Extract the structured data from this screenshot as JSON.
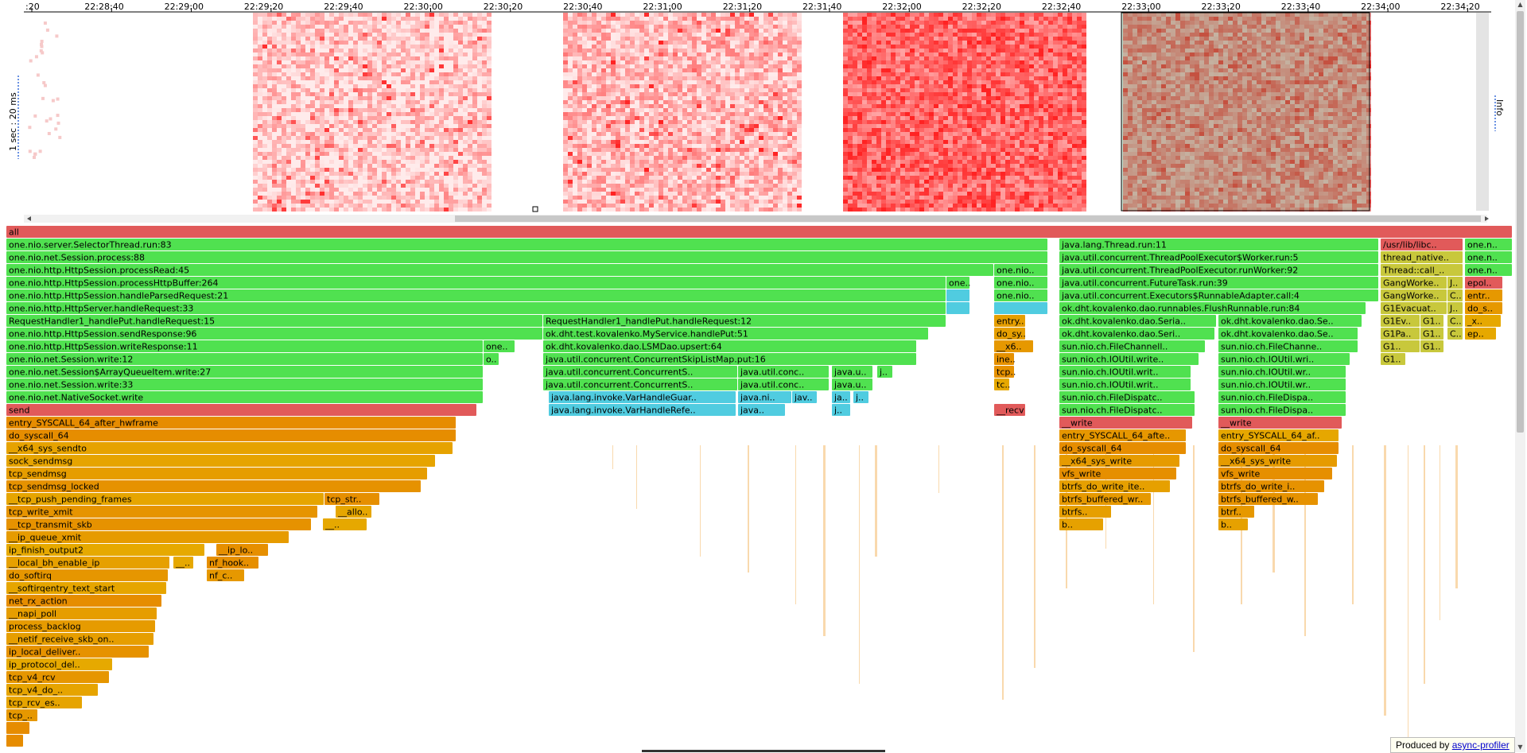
{
  "heatmap": {
    "time_ticks": [
      ":20",
      "22:28:40",
      "22:29:00",
      "22:29:20",
      "22:29:40",
      "22:30:00",
      "22:30:20",
      "22:30:40",
      "22:31:00",
      "22:31:20",
      "22:31:40",
      "22:32:00",
      "22:32:20",
      "22:32:40",
      "22:33:00",
      "22:33:20",
      "22:33:40",
      "22:34:00",
      "22:34:20"
    ],
    "scale_label": "1 sec : 20 ms",
    "info_label": "Info",
    "scroll_left_icon": "triangle-left",
    "scroll_right_icon": "triangle-right",
    "colors": {
      "heat_light": "#fde0e0",
      "heat_medium": "#f26b6b",
      "heat_dark": "#d62020",
      "selection_fill": "#5aa878",
      "selection_border": "#000000",
      "background": "#ffffff",
      "scrollbar": "#c8c8c8"
    }
  },
  "flamegraph": {
    "colors": {
      "java": "#50e150",
      "java_interp": "#5ee85e",
      "inlined": "#50cce0",
      "kernel": "#e69900",
      "kernel_light": "#f5a623",
      "native": "#e15a5a",
      "cpp": "#c8c83c",
      "root": "#e15a5a"
    },
    "frames": [
      {
        "d": 0,
        "a": 0,
        "b": 1894,
        "t": "all",
        "c": "root"
      },
      {
        "d": 1,
        "a": 0,
        "b": 1310,
        "t": "one.nio.server.SelectorThread.run:83",
        "c": "java"
      },
      {
        "d": 1,
        "a": 1324,
        "b": 1726,
        "t": "java.lang.Thread.run:11",
        "c": "java"
      },
      {
        "d": 1,
        "a": 1728,
        "b": 1832,
        "t": "/usr/lib/libc..",
        "c": "native"
      },
      {
        "d": 1,
        "a": 1834,
        "b": 1894,
        "t": "one.n..",
        "c": "java"
      },
      {
        "d": 2,
        "a": 0,
        "b": 1310,
        "t": "one.nio.net.Session.process:88",
        "c": "java"
      },
      {
        "d": 2,
        "a": 1324,
        "b": 1726,
        "t": "java.util.concurrent.ThreadPoolExecutor$Worker.run:5",
        "c": "java"
      },
      {
        "d": 2,
        "a": 1728,
        "b": 1832,
        "t": "thread_native..",
        "c": "cpp"
      },
      {
        "d": 2,
        "a": 1834,
        "b": 1894,
        "t": "one.n..",
        "c": "java"
      },
      {
        "d": 3,
        "a": 0,
        "b": 1242,
        "t": "one.nio.http.HttpSession.processRead:45",
        "c": "java"
      },
      {
        "d": 3,
        "a": 1242,
        "b": 1310,
        "t": "one.nio..",
        "c": "java"
      },
      {
        "d": 3,
        "a": 1324,
        "b": 1726,
        "t": "java.util.concurrent.ThreadPoolExecutor.runWorker:92",
        "c": "java"
      },
      {
        "d": 3,
        "a": 1728,
        "b": 1832,
        "t": "Thread::call_..",
        "c": "cpp"
      },
      {
        "d": 3,
        "a": 1834,
        "b": 1894,
        "t": "one.n..",
        "c": "java"
      },
      {
        "d": 4,
        "a": 0,
        "b": 1182,
        "t": "one.nio.http.HttpSession.processHttpBuffer:264",
        "c": "java"
      },
      {
        "d": 4,
        "a": 1182,
        "b": 1212,
        "t": "one..",
        "c": "java"
      },
      {
        "d": 4,
        "a": 1242,
        "b": 1310,
        "t": "one.nio..",
        "c": "java"
      },
      {
        "d": 4,
        "a": 1324,
        "b": 1726,
        "t": "java.util.concurrent.FutureTask.run:39",
        "c": "java"
      },
      {
        "d": 4,
        "a": 1728,
        "b": 1812,
        "t": "GangWorke..",
        "c": "cpp"
      },
      {
        "d": 4,
        "a": 1812,
        "b": 1832,
        "t": "J..",
        "c": "cpp"
      },
      {
        "d": 4,
        "a": 1834,
        "b": 1882,
        "t": "epol..",
        "c": "native"
      },
      {
        "d": 5,
        "a": 0,
        "b": 1182,
        "t": "one.nio.http.HttpSession.handleParsedRequest:21",
        "c": "java"
      },
      {
        "d": 5,
        "a": 1182,
        "b": 1212,
        "t": "",
        "c": "inlined"
      },
      {
        "d": 5,
        "a": 1242,
        "b": 1310,
        "t": "one.nio..",
        "c": "java"
      },
      {
        "d": 5,
        "a": 1324,
        "b": 1726,
        "t": "java.util.concurrent.Executors$RunnableAdapter.call:4",
        "c": "java"
      },
      {
        "d": 5,
        "a": 1728,
        "b": 1812,
        "t": "GangWorke..",
        "c": "cpp"
      },
      {
        "d": 5,
        "a": 1812,
        "b": 1832,
        "t": "C..",
        "c": "cpp"
      },
      {
        "d": 5,
        "a": 1834,
        "b": 1882,
        "t": "entr..",
        "c": "kernel"
      },
      {
        "d": 6,
        "a": 0,
        "b": 1182,
        "t": "one.nio.http.HttpServer.handleRequest:33",
        "c": "java"
      },
      {
        "d": 6,
        "a": 1182,
        "b": 1212,
        "t": "",
        "c": "inlined"
      },
      {
        "d": 6,
        "a": 1242,
        "b": 1310,
        "t": "",
        "c": "inlined"
      },
      {
        "d": 6,
        "a": 1324,
        "b": 1710,
        "t": "ok.dht.kovalenko.dao.runnables.FlushRunnable.run:84",
        "c": "java"
      },
      {
        "d": 6,
        "a": 1728,
        "b": 1812,
        "t": "G1Evacuat..",
        "c": "cpp"
      },
      {
        "d": 6,
        "a": 1812,
        "b": 1832,
        "t": "J..",
        "c": "cpp"
      },
      {
        "d": 6,
        "a": 1834,
        "b": 1882,
        "t": "do_s..",
        "c": "kernel"
      },
      {
        "d": 7,
        "a": 0,
        "b": 675,
        "t": "RequestHandler1_handlePut.handleRequest:15",
        "c": "java"
      },
      {
        "d": 7,
        "a": 675,
        "b": 1182,
        "t": "RequestHandler1_handlePut.handleRequest:12",
        "c": "java"
      },
      {
        "d": 7,
        "a": 1242,
        "b": 1282,
        "t": "entry..",
        "c": "kernel"
      },
      {
        "d": 7,
        "a": 1324,
        "b": 1522,
        "t": "ok.dht.kovalenko.dao.Seria..",
        "c": "java"
      },
      {
        "d": 7,
        "a": 1524,
        "b": 1705,
        "t": "ok.dht.kovalenko.dao.Se..",
        "c": "java"
      },
      {
        "d": 7,
        "a": 1728,
        "b": 1778,
        "t": "G1Ev..",
        "c": "cpp"
      },
      {
        "d": 7,
        "a": 1778,
        "b": 1808,
        "t": "G1..",
        "c": "cpp"
      },
      {
        "d": 7,
        "a": 1812,
        "b": 1832,
        "t": "C..",
        "c": "cpp"
      },
      {
        "d": 7,
        "a": 1834,
        "b": 1880,
        "t": "_x..",
        "c": "kernel"
      },
      {
        "d": 8,
        "a": 0,
        "b": 675,
        "t": "one.nio.http.HttpSession.sendResponse:96",
        "c": "java"
      },
      {
        "d": 8,
        "a": 675,
        "b": 1160,
        "t": "ok.dht.test.kovalenko.MyService.handlePut:51",
        "c": "java"
      },
      {
        "d": 8,
        "a": 1242,
        "b": 1282,
        "t": "do_sy..",
        "c": "kernel"
      },
      {
        "d": 8,
        "a": 1324,
        "b": 1520,
        "t": "ok.dht.kovalenko.dao.Seri..",
        "c": "java"
      },
      {
        "d": 8,
        "a": 1524,
        "b": 1700,
        "t": "ok.dht.kovalenko.dao.Se..",
        "c": "java"
      },
      {
        "d": 8,
        "a": 1728,
        "b": 1778,
        "t": "G1Pa..",
        "c": "cpp"
      },
      {
        "d": 8,
        "a": 1778,
        "b": 1808,
        "t": "G1..",
        "c": "cpp"
      },
      {
        "d": 8,
        "a": 1812,
        "b": 1832,
        "t": "C..",
        "c": "cpp"
      },
      {
        "d": 8,
        "a": 1834,
        "b": 1874,
        "t": "ep..",
        "c": "kernel"
      },
      {
        "d": 9,
        "a": 0,
        "b": 600,
        "t": "one.nio.http.HttpSession.writeResponse:11",
        "c": "java"
      },
      {
        "d": 9,
        "a": 600,
        "b": 640,
        "t": "one..",
        "c": "java"
      },
      {
        "d": 9,
        "a": 675,
        "b": 1145,
        "t": "ok.dht.kovalenko.dao.LSMDao.upsert:64",
        "c": "java"
      },
      {
        "d": 9,
        "a": 1242,
        "b": 1292,
        "t": "__x6..",
        "c": "kernel"
      },
      {
        "d": 9,
        "a": 1324,
        "b": 1508,
        "t": "sun.nio.ch.FileChannell..",
        "c": "java"
      },
      {
        "d": 9,
        "a": 1524,
        "b": 1700,
        "t": "sun.nio.ch.FileChanne..",
        "c": "java"
      },
      {
        "d": 9,
        "a": 1728,
        "b": 1778,
        "t": "G1..",
        "c": "cpp"
      },
      {
        "d": 9,
        "a": 1778,
        "b": 1808,
        "t": "G1..",
        "c": "cpp"
      },
      {
        "d": 10,
        "a": 0,
        "b": 600,
        "t": "one.nio.net.Session.write:12",
        "c": "java"
      },
      {
        "d": 10,
        "a": 600,
        "b": 620,
        "t": "o..",
        "c": "java"
      },
      {
        "d": 10,
        "a": 675,
        "b": 1145,
        "t": "java.util.concurrent.ConcurrentSkipListMap.put:16",
        "c": "java"
      },
      {
        "d": 10,
        "a": 1242,
        "b": 1268,
        "t": "ine..",
        "c": "kernel"
      },
      {
        "d": 10,
        "a": 1324,
        "b": 1500,
        "t": "sun.nio.ch.IOUtil.write..",
        "c": "java"
      },
      {
        "d": 10,
        "a": 1524,
        "b": 1690,
        "t": "sun.nio.ch.IOUtil.wri..",
        "c": "java"
      },
      {
        "d": 10,
        "a": 1728,
        "b": 1760,
        "t": "G1..",
        "c": "cpp"
      },
      {
        "d": 11,
        "a": 0,
        "b": 600,
        "t": "one.nio.net.Session$ArrayQueueItem.write:27",
        "c": "java"
      },
      {
        "d": 11,
        "a": 675,
        "b": 920,
        "t": "java.util.concurrent.ConcurrentS..",
        "c": "java"
      },
      {
        "d": 11,
        "a": 920,
        "b": 1035,
        "t": "java.util.conc..",
        "c": "java"
      },
      {
        "d": 11,
        "a": 1038,
        "b": 1090,
        "t": "java.u..",
        "c": "java"
      },
      {
        "d": 11,
        "a": 1095,
        "b": 1115,
        "t": "j..",
        "c": "java"
      },
      {
        "d": 11,
        "a": 1242,
        "b": 1268,
        "t": "tcp..",
        "c": "kernel"
      },
      {
        "d": 11,
        "a": 1324,
        "b": 1490,
        "t": "sun.nio.ch.IOUtil.writ..",
        "c": "java"
      },
      {
        "d": 11,
        "a": 1524,
        "b": 1685,
        "t": "sun.nio.ch.IOUtil.wr..",
        "c": "java"
      },
      {
        "d": 12,
        "a": 0,
        "b": 600,
        "t": "one.nio.net.Session.write:33",
        "c": "java"
      },
      {
        "d": 12,
        "a": 675,
        "b": 920,
        "t": "java.util.concurrent.ConcurrentS..",
        "c": "java"
      },
      {
        "d": 12,
        "a": 920,
        "b": 1035,
        "t": "java.util.conc..",
        "c": "java"
      },
      {
        "d": 12,
        "a": 1038,
        "b": 1090,
        "t": "java.u..",
        "c": "java"
      },
      {
        "d": 12,
        "a": 1242,
        "b": 1262,
        "t": "tc..",
        "c": "kernel"
      },
      {
        "d": 12,
        "a": 1324,
        "b": 1490,
        "t": "sun.nio.ch.IOUtil.writ..",
        "c": "java"
      },
      {
        "d": 12,
        "a": 1524,
        "b": 1685,
        "t": "sun.nio.ch.IOUtil.wr..",
        "c": "java"
      },
      {
        "d": 13,
        "a": 0,
        "b": 600,
        "t": "one.nio.net.NativeSocket.write",
        "c": "java"
      },
      {
        "d": 13,
        "a": 682,
        "b": 918,
        "t": "java.lang.invoke.VarHandleGuar..",
        "c": "inlined"
      },
      {
        "d": 13,
        "a": 920,
        "b": 988,
        "t": "java.ni..",
        "c": "inlined"
      },
      {
        "d": 13,
        "a": 988,
        "b": 1020,
        "t": "jav..",
        "c": "inlined"
      },
      {
        "d": 13,
        "a": 1038,
        "b": 1062,
        "t": "ja..",
        "c": "inlined"
      },
      {
        "d": 13,
        "a": 1065,
        "b": 1085,
        "t": "j..",
        "c": "inlined"
      },
      {
        "d": 13,
        "a": 1324,
        "b": 1495,
        "t": "sun.nio.ch.FileDispatc..",
        "c": "java"
      },
      {
        "d": 13,
        "a": 1524,
        "b": 1685,
        "t": "sun.nio.ch.FileDispa..",
        "c": "java"
      },
      {
        "d": 14,
        "a": 0,
        "b": 592,
        "t": "send",
        "c": "native"
      },
      {
        "d": 14,
        "a": 682,
        "b": 918,
        "t": "java.lang.invoke.VarHandleRefe..",
        "c": "inlined"
      },
      {
        "d": 14,
        "a": 920,
        "b": 980,
        "t": "java..",
        "c": "inlined"
      },
      {
        "d": 14,
        "a": 1038,
        "b": 1062,
        "t": "j..",
        "c": "inlined"
      },
      {
        "d": 14,
        "a": 1242,
        "b": 1282,
        "t": "__recv",
        "c": "native"
      },
      {
        "d": 14,
        "a": 1324,
        "b": 1495,
        "t": "sun.nio.ch.FileDispatc..",
        "c": "java"
      },
      {
        "d": 14,
        "a": 1524,
        "b": 1685,
        "t": "sun.nio.ch.FileDispa..",
        "c": "java"
      },
      {
        "d": 15,
        "a": 0,
        "b": 566,
        "t": "entry_SYSCALL_64_after_hwframe",
        "c": "kernel"
      },
      {
        "d": 15,
        "a": 1324,
        "b": 1492,
        "t": "__write",
        "c": "native"
      },
      {
        "d": 15,
        "a": 1524,
        "b": 1680,
        "t": "__write",
        "c": "native"
      },
      {
        "d": 16,
        "a": 0,
        "b": 566,
        "t": "do_syscall_64",
        "c": "kernel"
      },
      {
        "d": 16,
        "a": 1324,
        "b": 1484,
        "t": "entry_SYSCALL_64_afte..",
        "c": "kernel"
      },
      {
        "d": 16,
        "a": 1524,
        "b": 1676,
        "t": "entry_SYSCALL_64_af..",
        "c": "kernel"
      },
      {
        "d": 17,
        "a": 0,
        "b": 562,
        "t": "__x64_sys_sendto",
        "c": "kernel"
      },
      {
        "d": 17,
        "a": 1324,
        "b": 1484,
        "t": "do_syscall_64",
        "c": "kernel"
      },
      {
        "d": 17,
        "a": 1524,
        "b": 1676,
        "t": "do_syscall_64",
        "c": "kernel"
      },
      {
        "d": 18,
        "a": 0,
        "b": 540,
        "t": "sock_sendmsg",
        "c": "kernel"
      },
      {
        "d": 18,
        "a": 1324,
        "b": 1476,
        "t": "__x64_sys_write",
        "c": "kernel"
      },
      {
        "d": 18,
        "a": 1524,
        "b": 1674,
        "t": "__x64_sys_write",
        "c": "kernel"
      },
      {
        "d": 19,
        "a": 0,
        "b": 530,
        "t": "tcp_sendmsg",
        "c": "kernel"
      },
      {
        "d": 19,
        "a": 1324,
        "b": 1472,
        "t": "vfs_write",
        "c": "kernel"
      },
      {
        "d": 19,
        "a": 1524,
        "b": 1668,
        "t": "vfs_write",
        "c": "kernel"
      },
      {
        "d": 20,
        "a": 0,
        "b": 522,
        "t": "tcp_sendmsg_locked",
        "c": "kernel"
      },
      {
        "d": 20,
        "a": 1324,
        "b": 1464,
        "t": "btrfs_do_write_ite..",
        "c": "kernel"
      },
      {
        "d": 20,
        "a": 1524,
        "b": 1658,
        "t": "btrfs_do_write_i..",
        "c": "kernel"
      },
      {
        "d": 21,
        "a": 0,
        "b": 400,
        "t": "__tcp_push_pending_frames",
        "c": "kernel"
      },
      {
        "d": 21,
        "a": 400,
        "b": 470,
        "t": "tcp_str..",
        "c": "kernel"
      },
      {
        "d": 21,
        "a": 1324,
        "b": 1440,
        "t": "btrfs_buffered_wr..",
        "c": "kernel"
      },
      {
        "d": 21,
        "a": 1524,
        "b": 1650,
        "t": "btrfs_buffered_w..",
        "c": "kernel"
      },
      {
        "d": 22,
        "a": 0,
        "b": 392,
        "t": "tcp_write_xmit",
        "c": "kernel"
      },
      {
        "d": 22,
        "a": 414,
        "b": 460,
        "t": "__allo..",
        "c": "kernel"
      },
      {
        "d": 22,
        "a": 1324,
        "b": 1390,
        "t": "btrfs..",
        "c": "kernel"
      },
      {
        "d": 22,
        "a": 1524,
        "b": 1570,
        "t": "btrf..",
        "c": "kernel"
      },
      {
        "d": 23,
        "a": 0,
        "b": 384,
        "t": "__tcp_transmit_skb",
        "c": "kernel"
      },
      {
        "d": 23,
        "a": 398,
        "b": 454,
        "t": "__..",
        "c": "kernel"
      },
      {
        "d": 23,
        "a": 1324,
        "b": 1380,
        "t": "b..",
        "c": "kernel"
      },
      {
        "d": 23,
        "a": 1524,
        "b": 1562,
        "t": "b..",
        "c": "kernel"
      },
      {
        "d": 24,
        "a": 0,
        "b": 356,
        "t": "__ip_queue_xmit",
        "c": "kernel"
      },
      {
        "d": 25,
        "a": 0,
        "b": 250,
        "t": "ip_finish_output2",
        "c": "kernel"
      },
      {
        "d": 25,
        "a": 264,
        "b": 330,
        "t": "__ip_lo..",
        "c": "kernel"
      },
      {
        "d": 26,
        "a": 0,
        "b": 206,
        "t": "__local_bh_enable_ip",
        "c": "kernel"
      },
      {
        "d": 26,
        "a": 210,
        "b": 236,
        "t": "__..",
        "c": "kernel"
      },
      {
        "d": 26,
        "a": 252,
        "b": 318,
        "t": "nf_hook..",
        "c": "kernel"
      },
      {
        "d": 27,
        "a": 0,
        "b": 204,
        "t": "do_softirq",
        "c": "kernel"
      },
      {
        "d": 27,
        "a": 252,
        "b": 300,
        "t": "nf_c..",
        "c": "kernel"
      },
      {
        "d": 28,
        "a": 0,
        "b": 202,
        "t": "__softirqentry_text_start",
        "c": "kernel"
      },
      {
        "d": 29,
        "a": 0,
        "b": 196,
        "t": "net_rx_action",
        "c": "kernel"
      },
      {
        "d": 30,
        "a": 0,
        "b": 190,
        "t": "__napi_poll",
        "c": "kernel"
      },
      {
        "d": 31,
        "a": 0,
        "b": 188,
        "t": "process_backlog",
        "c": "kernel"
      },
      {
        "d": 32,
        "a": 0,
        "b": 186,
        "t": "__netif_receive_skb_on..",
        "c": "kernel"
      },
      {
        "d": 33,
        "a": 0,
        "b": 180,
        "t": "ip_local_deliver..",
        "c": "kernel"
      },
      {
        "d": 34,
        "a": 0,
        "b": 134,
        "t": "ip_protocol_del..",
        "c": "kernel"
      },
      {
        "d": 35,
        "a": 0,
        "b": 130,
        "t": "tcp_v4_rcv",
        "c": "kernel"
      },
      {
        "d": 36,
        "a": 0,
        "b": 116,
        "t": "tcp_v4_do_..",
        "c": "kernel"
      },
      {
        "d": 37,
        "a": 0,
        "b": 96,
        "t": "tcp_rcv_es..",
        "c": "kernel"
      },
      {
        "d": 38,
        "a": 0,
        "b": 40,
        "t": "tcp_..",
        "c": "kernel"
      },
      {
        "d": 39,
        "a": 0,
        "b": 30,
        "t": "",
        "c": "kernel"
      },
      {
        "d": 40,
        "a": 0,
        "b": 22,
        "t": "",
        "c": "kernel"
      }
    ]
  },
  "footer": {
    "produced_by_prefix": "Produced by",
    "produced_by_link": "async-profiler"
  },
  "scrollbar": {
    "up_icon": "triangle-up",
    "down_icon": "triangle-down"
  }
}
